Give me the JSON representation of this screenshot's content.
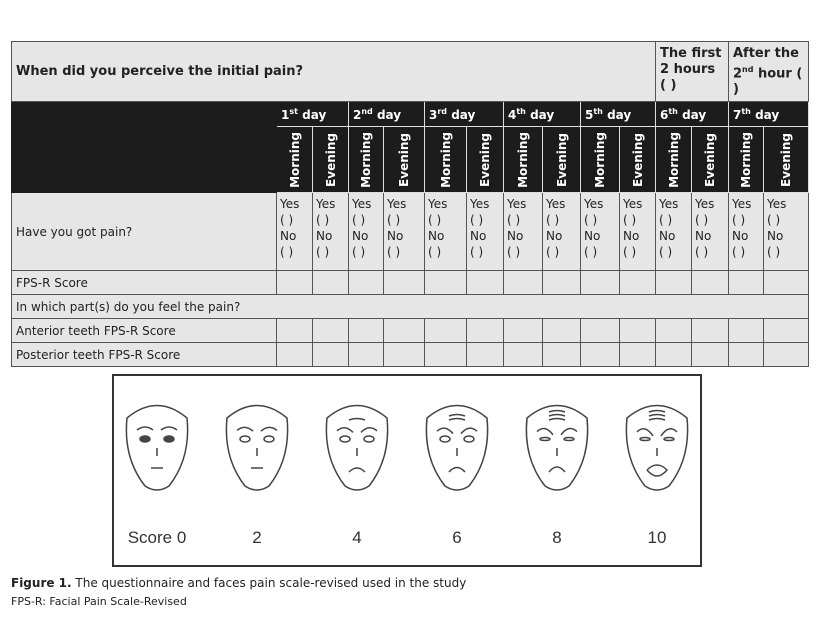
{
  "table": {
    "question": "When did you perceive the initial pain?",
    "first_hours": "The first 2 hours ( )",
    "after_hour": {
      "pre": "After the ",
      "num": "2",
      "sup": "nd",
      "post": " hour ( )"
    },
    "days": [
      {
        "num": "1",
        "sup": "st",
        "label": " day"
      },
      {
        "num": "2",
        "sup": "nd",
        "label": " day"
      },
      {
        "num": "3",
        "sup": "rd",
        "label": " day"
      },
      {
        "num": "4",
        "sup": "th",
        "label": " day"
      },
      {
        "num": "5",
        "sup": "th",
        "label": " day"
      },
      {
        "num": "6",
        "sup": "th",
        "label": " day"
      },
      {
        "num": "7",
        "sup": "th",
        "label": " day"
      }
    ],
    "morning": "Morning",
    "evening": "Evening",
    "rows": {
      "pain": "Have you got pain?",
      "fps": "FPS-R Score",
      "which": "In which part(s) do you feel the pain?",
      "anterior": "Anterior teeth FPS-R Score",
      "posterior": "Posterior teeth FPS-R Score"
    },
    "yes": "Yes",
    "no": "No",
    "blank": "( )"
  },
  "faces": {
    "scores": [
      "Score 0",
      "2",
      "4",
      "6",
      "8",
      "10"
    ]
  },
  "caption": {
    "label": "Figure 1.",
    "text": " The questionnaire and faces pain scale-revised used in the study",
    "note": "FPS-R: Facial Pain Scale-Revised"
  },
  "colors": {
    "header_dark": "#1c1c1c",
    "cell_bg": "#e6e6e6"
  }
}
